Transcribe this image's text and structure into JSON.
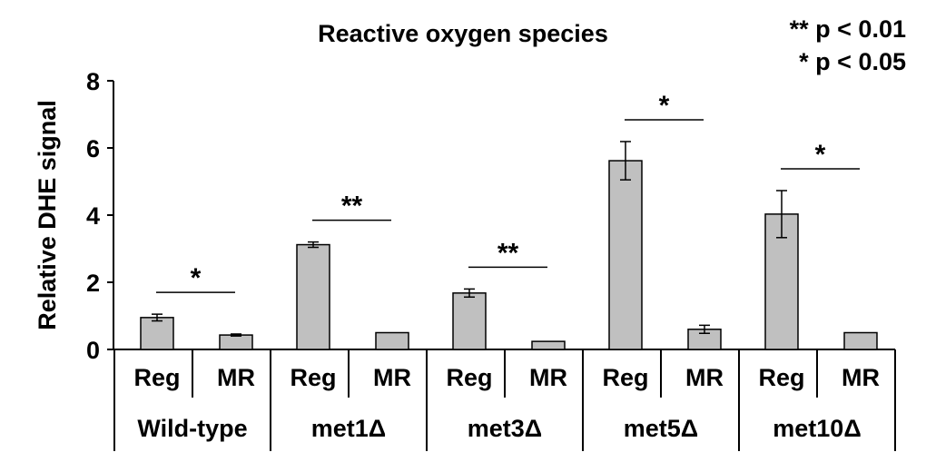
{
  "chart_data": {
    "type": "bar",
    "title": "Reactive oxygen species",
    "ylabel": "Relative DHE signal",
    "xlabel": "",
    "ylim": [
      0,
      8
    ],
    "yticks": [
      0,
      2,
      4,
      6,
      8
    ],
    "grid": false,
    "legend_lines": [
      "** p < 0.01",
      "* p < 0.05"
    ],
    "bar_color": "#c0c0c0",
    "groups": [
      {
        "name": "Wild-type",
        "bars": [
          {
            "label": "Reg",
            "value": 0.95,
            "error": 0.1
          },
          {
            "label": "MR",
            "value": 0.43,
            "error": 0.03
          }
        ],
        "significance": "*"
      },
      {
        "name": "met1Δ",
        "bars": [
          {
            "label": "Reg",
            "value": 3.12,
            "error": 0.08
          },
          {
            "label": "MR",
            "value": 0.5,
            "error": 0
          }
        ],
        "significance": "**"
      },
      {
        "name": "met3Δ",
        "bars": [
          {
            "label": "Reg",
            "value": 1.68,
            "error": 0.12
          },
          {
            "label": "MR",
            "value": 0.24,
            "error": 0
          }
        ],
        "significance": "**"
      },
      {
        "name": "met5Δ",
        "bars": [
          {
            "label": "Reg",
            "value": 5.62,
            "error": 0.57
          },
          {
            "label": "MR",
            "value": 0.6,
            "error": 0.12
          }
        ],
        "significance": "*"
      },
      {
        "name": "met10Δ",
        "bars": [
          {
            "label": "Reg",
            "value": 4.03,
            "error": 0.7
          },
          {
            "label": "MR",
            "value": 0.5,
            "error": 0
          }
        ],
        "significance": "*"
      }
    ]
  }
}
